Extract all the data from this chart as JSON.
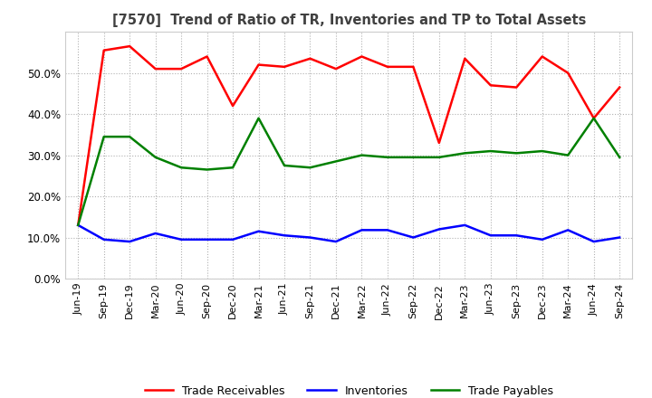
{
  "title": "[7570]  Trend of Ratio of TR, Inventories and TP to Total Assets",
  "x_labels": [
    "Jun-19",
    "Sep-19",
    "Dec-19",
    "Mar-20",
    "Jun-20",
    "Sep-20",
    "Dec-20",
    "Mar-21",
    "Jun-21",
    "Sep-21",
    "Dec-21",
    "Mar-22",
    "Jun-22",
    "Sep-22",
    "Dec-22",
    "Mar-23",
    "Jun-23",
    "Sep-23",
    "Dec-23",
    "Mar-24",
    "Jun-24",
    "Sep-24"
  ],
  "trade_receivables": [
    0.13,
    0.555,
    0.565,
    0.51,
    0.51,
    0.54,
    0.42,
    0.52,
    0.515,
    0.535,
    0.51,
    0.54,
    0.515,
    0.515,
    0.33,
    0.535,
    0.47,
    0.465,
    0.54,
    0.5,
    0.39,
    0.465
  ],
  "inventories": [
    0.13,
    0.095,
    0.09,
    0.11,
    0.095,
    0.095,
    0.095,
    0.115,
    0.105,
    0.1,
    0.09,
    0.118,
    0.118,
    0.1,
    0.12,
    0.13,
    0.105,
    0.105,
    0.095,
    0.118,
    0.09,
    0.1
  ],
  "trade_payables": [
    0.13,
    0.345,
    0.345,
    0.295,
    0.27,
    0.265,
    0.27,
    0.39,
    0.275,
    0.27,
    0.285,
    0.3,
    0.295,
    0.295,
    0.295,
    0.305,
    0.31,
    0.305,
    0.31,
    0.3,
    0.39,
    0.295
  ],
  "tr_color": "#ff0000",
  "inv_color": "#0000ff",
  "tp_color": "#008000",
  "ylim": [
    0.0,
    0.6
  ],
  "yticks": [
    0.0,
    0.1,
    0.2,
    0.3,
    0.4,
    0.5
  ],
  "background_color": "#ffffff",
  "grid_color": "#b0b0b0",
  "chart_bg": "#ffffff"
}
